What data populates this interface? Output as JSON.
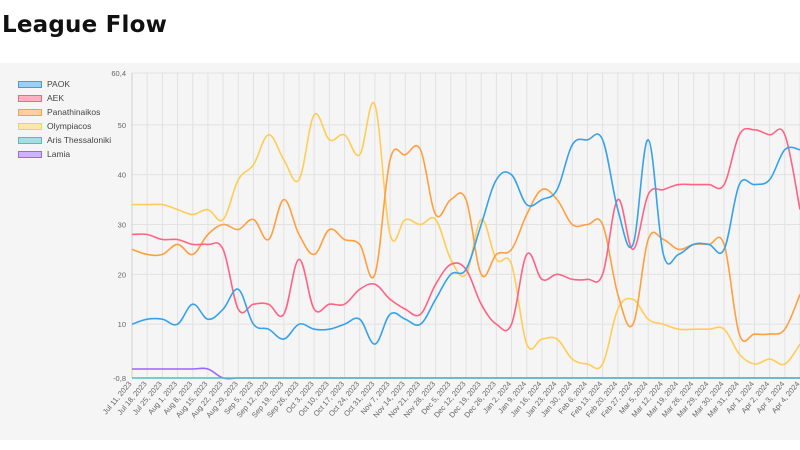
{
  "page": {
    "title": "League Flow"
  },
  "chart_data": {
    "type": "line",
    "title": "",
    "xlabel": "",
    "ylabel": "",
    "ylim": [
      -0.8,
      60.4
    ],
    "y_ticks": [
      {
        "value": 60.4,
        "label": "60,4"
      },
      {
        "value": 50,
        "label": "50"
      },
      {
        "value": 40,
        "label": "40"
      },
      {
        "value": 30,
        "label": "30"
      },
      {
        "value": 20,
        "label": "20"
      },
      {
        "value": 10,
        "label": "10"
      },
      {
        "value": -0.8,
        "label": "-0,8"
      }
    ],
    "grid": true,
    "legend_position": "top-left",
    "categories": [
      "Jul 11, 2023",
      "Jul 18, 2023",
      "Jul 25, 2023",
      "Aug 1, 2023",
      "Aug 8, 2023",
      "Aug 15, 2023",
      "Aug 22, 2023",
      "Aug 29, 2023",
      "Sep 5, 2023",
      "Sep 12, 2023",
      "Sep 19, 2023",
      "Sep 26, 2023",
      "Oct 3, 2023",
      "Oct 10, 2023",
      "Oct 17, 2023",
      "Oct 24, 2023",
      "Oct 31, 2023",
      "Nov 7, 2023",
      "Nov 14, 2023",
      "Nov 21, 2023",
      "Nov 28, 2023",
      "Dec 5, 2023",
      "Dec 12, 2023",
      "Dec 19, 2023",
      "Dec 26, 2023",
      "Jan 2, 2024",
      "Jan 9, 2024",
      "Jan 16, 2024",
      "Jan 23, 2024",
      "Jan 30, 2024",
      "Feb 6, 2024",
      "Feb 13, 2024",
      "Feb 20, 2024",
      "Feb 27, 2024",
      "Mar 5, 2024",
      "Mar 12, 2024",
      "Mar 19, 2024",
      "Mar 26, 2024",
      "Mar 29, 2024",
      "Mar 30, 2024",
      "Mar 31, 2024",
      "Apr 1, 2024",
      "Apr 2, 2024",
      "Apr 3, 2024",
      "Apr 4, 2024"
    ],
    "series": [
      {
        "name": "PAOK",
        "color": "#36a2eb",
        "fill": "#9ad0f5",
        "values": [
          10,
          11,
          11,
          10,
          14,
          11,
          13,
          17,
          10,
          9,
          7,
          10,
          9,
          9,
          10,
          11,
          6,
          12,
          11,
          10,
          15,
          20,
          21,
          30,
          39,
          40,
          34,
          35,
          37,
          46,
          47,
          47,
          33,
          26,
          47,
          24,
          24,
          26,
          26,
          25,
          38,
          38,
          39,
          45,
          45
        ]
      },
      {
        "name": "AEK",
        "color": "#ff6384",
        "fill": "#ffb1c1",
        "values": [
          28,
          28,
          27,
          27,
          26,
          26,
          25,
          13,
          14,
          14,
          12,
          23,
          13,
          14,
          14,
          17,
          18,
          15,
          13,
          12,
          18,
          22,
          21,
          14,
          10,
          10,
          24,
          19,
          20,
          19,
          19,
          20,
          35,
          25,
          36,
          37,
          38,
          38,
          38,
          38,
          48,
          49,
          48,
          48,
          33
        ]
      },
      {
        "name": "Panathinaikos",
        "color": "#ff9f40",
        "fill": "#ffcf9f",
        "values": [
          25,
          24,
          24,
          26,
          24,
          28,
          30,
          29,
          31,
          27,
          35,
          28,
          24,
          29,
          27,
          26,
          20,
          43,
          44,
          45,
          32,
          35,
          35,
          20,
          24,
          25,
          32,
          37,
          35,
          30,
          30,
          30,
          16,
          10,
          27,
          27,
          25,
          26,
          26,
          26,
          8,
          8,
          8,
          9,
          16
        ]
      },
      {
        "name": "Olympiacos",
        "color": "#ffcd56",
        "fill": "#ffe6aa",
        "values": [
          34,
          34,
          34,
          33,
          32,
          33,
          31,
          39,
          42,
          48,
          43,
          39,
          52,
          47,
          48,
          44,
          54,
          28,
          31,
          30,
          31,
          23,
          20,
          31,
          23,
          22,
          6,
          7,
          7,
          3,
          2,
          2,
          13,
          15,
          11,
          10,
          9,
          9,
          9,
          9,
          4,
          2,
          3,
          2,
          6
        ]
      },
      {
        "name": "Aris Thessaloniki",
        "color": "#4bc0c0",
        "fill": "#a5dfdf",
        "values": [
          -0.8,
          -0.8,
          -0.8,
          -0.8,
          -0.8,
          -0.8,
          -0.8,
          -0.8,
          -0.8,
          -0.8,
          -0.8,
          -0.8,
          -0.8,
          -0.8,
          -0.8,
          -0.8,
          -0.8,
          -0.8,
          -0.8,
          -0.8,
          -0.8,
          -0.8,
          -0.8,
          -0.8,
          -0.8,
          -0.8,
          -0.8,
          -0.8,
          -0.8,
          -0.8,
          -0.8,
          -0.8,
          -0.8,
          -0.8,
          -0.8,
          -0.8,
          -0.8,
          -0.8,
          -0.8,
          -0.8,
          -0.8,
          -0.8,
          -0.8,
          -0.8,
          -0.8
        ]
      },
      {
        "name": "Lamia",
        "color": "#9966ff",
        "fill": "#ccb2ff",
        "values": [
          1,
          1,
          1,
          1,
          1,
          1,
          -0.8,
          -0.8,
          -0.8,
          -0.8,
          -0.8,
          -0.8,
          -0.8,
          -0.8,
          -0.8,
          -0.8,
          -0.8,
          -0.8,
          -0.8,
          -0.8,
          -0.8,
          -0.8,
          -0.8,
          -0.8,
          -0.8,
          -0.8,
          -0.8,
          -0.8,
          -0.8,
          -0.8,
          -0.8,
          -0.8,
          -0.8,
          -0.8,
          -0.8,
          -0.8,
          -0.8,
          -0.8,
          -0.8,
          -0.8,
          -0.8,
          -0.8,
          -0.8,
          -0.8,
          -0.8
        ]
      }
    ]
  }
}
